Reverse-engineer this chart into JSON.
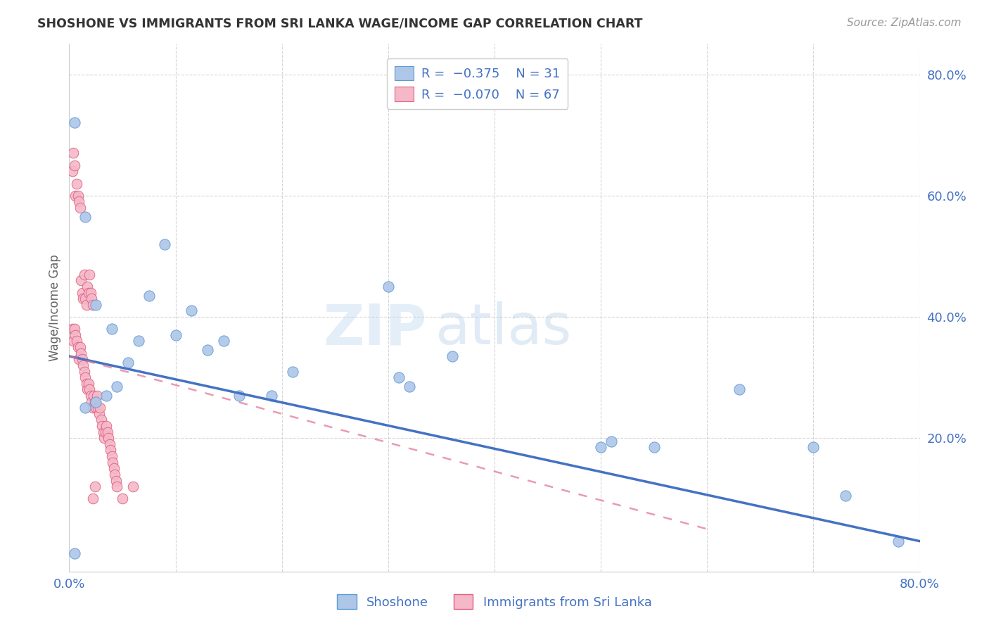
{
  "title": "SHOSHONE VS IMMIGRANTS FROM SRI LANKA WAGE/INCOME GAP CORRELATION CHART",
  "source": "Source: ZipAtlas.com",
  "ylabel": "Wage/Income Gap",
  "xlim": [
    0.0,
    0.8
  ],
  "ylim": [
    -0.02,
    0.85
  ],
  "xticks": [
    0.0,
    0.1,
    0.2,
    0.3,
    0.4,
    0.5,
    0.6,
    0.7,
    0.8
  ],
  "xticklabels": [
    "0.0%",
    "",
    "",
    "",
    "",
    "",
    "",
    "",
    "80.0%"
  ],
  "yticks_right": [
    0.2,
    0.4,
    0.6,
    0.8
  ],
  "ytick_right_labels": [
    "20.0%",
    "40.0%",
    "60.0%",
    "80.0%"
  ],
  "shoshone_color": "#aec6e8",
  "shoshone_edge": "#5b9bd5",
  "sri_lanka_color": "#f4b8c8",
  "sri_lanka_edge": "#e06080",
  "trend_blue": "#4472c4",
  "trend_pink": "#e07090",
  "legend_text_1": "R =  −0.375    N = 31",
  "legend_text_2": "R =  −0.070    N = 67",
  "shoshone_x": [
    0.005,
    0.015,
    0.025,
    0.04,
    0.055,
    0.065,
    0.075,
    0.09,
    0.1,
    0.115,
    0.13,
    0.145,
    0.16,
    0.19,
    0.21,
    0.3,
    0.31,
    0.32,
    0.36,
    0.5,
    0.51,
    0.55,
    0.63,
    0.7,
    0.73,
    0.78,
    0.015,
    0.025,
    0.035,
    0.045,
    0.005
  ],
  "shoshone_y": [
    0.72,
    0.565,
    0.42,
    0.38,
    0.325,
    0.36,
    0.435,
    0.52,
    0.37,
    0.41,
    0.345,
    0.36,
    0.27,
    0.27,
    0.31,
    0.45,
    0.3,
    0.285,
    0.335,
    0.185,
    0.195,
    0.185,
    0.28,
    0.185,
    0.105,
    0.03,
    0.25,
    0.26,
    0.27,
    0.285,
    0.01
  ],
  "sri_lanka_x": [
    0.003,
    0.004,
    0.005,
    0.006,
    0.007,
    0.008,
    0.009,
    0.01,
    0.011,
    0.012,
    0.013,
    0.014,
    0.015,
    0.016,
    0.017,
    0.018,
    0.019,
    0.02,
    0.021,
    0.022,
    0.003,
    0.004,
    0.005,
    0.006,
    0.007,
    0.008,
    0.009,
    0.01,
    0.011,
    0.012,
    0.013,
    0.014,
    0.015,
    0.016,
    0.017,
    0.018,
    0.019,
    0.02,
    0.021,
    0.022,
    0.023,
    0.024,
    0.025,
    0.026,
    0.027,
    0.028,
    0.029,
    0.03,
    0.031,
    0.032,
    0.033,
    0.034,
    0.035,
    0.036,
    0.037,
    0.038,
    0.039,
    0.04,
    0.041,
    0.042,
    0.043,
    0.044,
    0.045,
    0.05,
    0.06,
    0.022,
    0.024
  ],
  "sri_lanka_y": [
    0.64,
    0.67,
    0.65,
    0.6,
    0.62,
    0.6,
    0.59,
    0.58,
    0.46,
    0.44,
    0.43,
    0.47,
    0.43,
    0.42,
    0.45,
    0.44,
    0.47,
    0.44,
    0.43,
    0.42,
    0.38,
    0.36,
    0.38,
    0.37,
    0.36,
    0.35,
    0.33,
    0.35,
    0.34,
    0.33,
    0.32,
    0.31,
    0.3,
    0.29,
    0.28,
    0.29,
    0.28,
    0.27,
    0.26,
    0.25,
    0.27,
    0.26,
    0.25,
    0.27,
    0.25,
    0.24,
    0.25,
    0.23,
    0.22,
    0.21,
    0.2,
    0.21,
    0.22,
    0.21,
    0.2,
    0.19,
    0.18,
    0.17,
    0.16,
    0.15,
    0.14,
    0.13,
    0.12,
    0.1,
    0.12,
    0.1,
    0.12
  ],
  "watermark_zip": "ZIP",
  "watermark_atlas": "atlas",
  "background_color": "#ffffff",
  "grid_color": "#cccccc",
  "blue_line_x0": 0.0,
  "blue_line_y0": 0.335,
  "blue_line_x1": 0.8,
  "blue_line_y1": 0.03,
  "pink_line_x0": 0.0,
  "pink_line_y0": 0.335,
  "pink_line_x1": 0.6,
  "pink_line_y1": 0.05
}
